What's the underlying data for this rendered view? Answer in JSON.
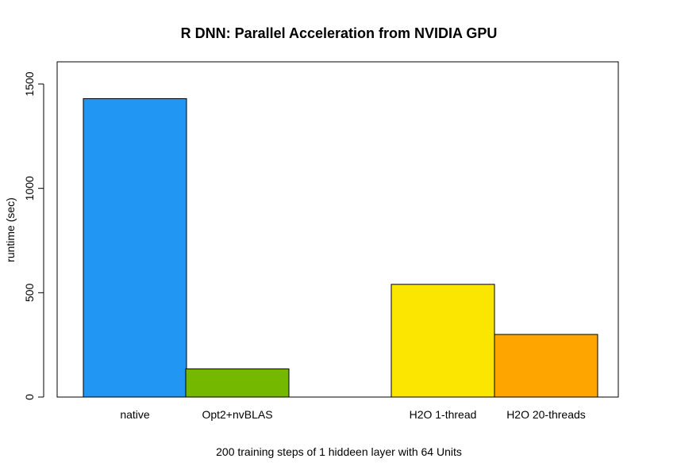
{
  "chart_data": {
    "type": "bar",
    "title": "R DNN: Parallel Acceleration from NVIDIA GPU",
    "xlabel": "200 training steps of 1 hiddeen layer with 64 Units",
    "ylabel": "runtime (sec)",
    "ylim": [
      0,
      1600
    ],
    "yticks": [
      0,
      500,
      1000,
      1500
    ],
    "grid": false,
    "categories": [
      "native",
      "Opt2+nvBLAS",
      "H2O 1-thread",
      "H2O 20-threads"
    ],
    "values": [
      1430,
      135,
      540,
      300
    ],
    "colors": [
      "#2196f3",
      "#74b800",
      "#fae600",
      "#ffa500"
    ]
  }
}
